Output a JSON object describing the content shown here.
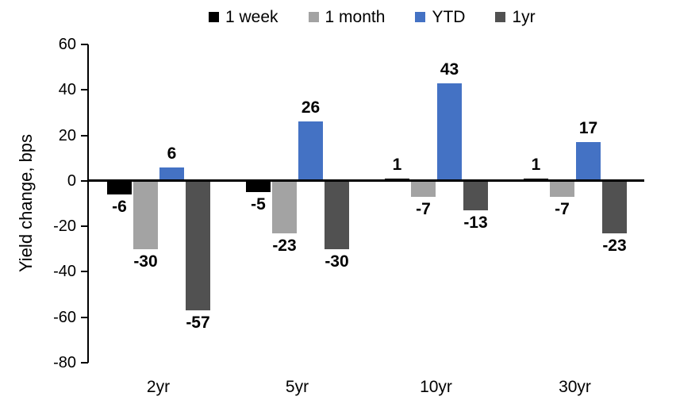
{
  "chart_data": {
    "type": "bar",
    "title": "",
    "xlabel": "",
    "ylabel": "Yield change, bps",
    "categories": [
      "2yr",
      "5yr",
      "10yr",
      "30yr"
    ],
    "series": [
      {
        "name": "1 week",
        "color": "#000000",
        "values": [
          -6,
          -5,
          1,
          1
        ]
      },
      {
        "name": "1 month",
        "color": "#A3A3A3",
        "values": [
          -30,
          -23,
          -7,
          -7
        ]
      },
      {
        "name": "YTD",
        "color": "#4472C4",
        "values": [
          6,
          26,
          43,
          17
        ]
      },
      {
        "name": "1yr",
        "color": "#515151",
        "values": [
          -57,
          -30,
          -13,
          -23
        ]
      }
    ],
    "ylim": [
      -80,
      60
    ],
    "yticks": [
      60,
      40,
      20,
      0,
      -20,
      -40,
      -60,
      -80
    ],
    "grid": false,
    "legend_position": "top",
    "data_labels": true,
    "axis_color": "#000000",
    "background_color": "#FFFFFF"
  }
}
